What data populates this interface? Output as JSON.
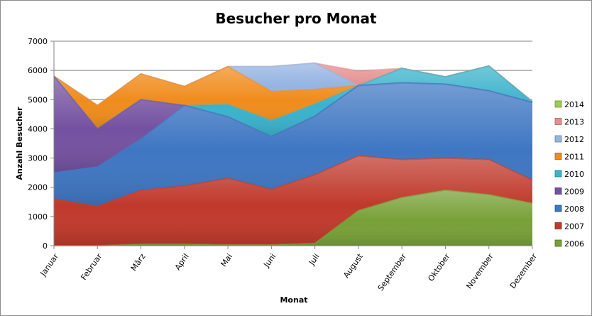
{
  "chart_data": {
    "type": "area",
    "title": "Besucher pro Monat",
    "xlabel": "Monat",
    "ylabel": "Anzahl Besucher",
    "ylim": [
      0,
      7000
    ],
    "yticks": [
      0,
      1000,
      2000,
      3000,
      4000,
      5000,
      6000,
      7000
    ],
    "grid": true,
    "legend_position": "right",
    "categories": [
      "Januar",
      "Februar",
      "März",
      "April",
      "Mai",
      "Juni",
      "Juli",
      "August",
      "September",
      "Oktober",
      "November",
      "Dezember"
    ],
    "series": [
      {
        "name": "2006",
        "color": "#77a037",
        "values": [
          0,
          0,
          50,
          50,
          30,
          30,
          80,
          1200,
          1650,
          1900,
          1750,
          1450
        ]
      },
      {
        "name": "2007",
        "color": "#c0392b",
        "values": [
          1600,
          1350,
          1850,
          2000,
          2280,
          1900,
          2350,
          1880,
          1300,
          1100,
          1200,
          800
        ]
      },
      {
        "name": "2008",
        "color": "#3e76c2",
        "values": [
          900,
          1350,
          1750,
          2750,
          2100,
          1800,
          2000,
          2400,
          2620,
          2530,
          2350,
          2650
        ]
      },
      {
        "name": "2009",
        "color": "#7451a0",
        "values": [
          3300,
          1300,
          1350,
          0,
          0,
          0,
          0,
          0,
          0,
          0,
          0,
          0
        ]
      },
      {
        "name": "2010",
        "color": "#3ab2cc",
        "values": [
          0,
          0,
          0,
          0,
          420,
          550,
          420,
          0,
          500,
          250,
          850,
          30
        ]
      },
      {
        "name": "2011",
        "color": "#f08c1c",
        "values": [
          0,
          800,
          880,
          650,
          1300,
          1000,
          500,
          0,
          0,
          0,
          0,
          0
        ]
      },
      {
        "name": "2012",
        "color": "#94b4e2",
        "values": [
          0,
          0,
          0,
          0,
          0,
          850,
          900,
          0,
          0,
          0,
          0,
          0
        ]
      },
      {
        "name": "2013",
        "color": "#e58e8e",
        "values": [
          0,
          0,
          0,
          0,
          0,
          0,
          0,
          500,
          0,
          0,
          0,
          0
        ]
      },
      {
        "name": "2014",
        "color": "#9acd52",
        "values": [
          0,
          0,
          0,
          0,
          0,
          0,
          0,
          0,
          0,
          0,
          0,
          0
        ]
      }
    ]
  }
}
